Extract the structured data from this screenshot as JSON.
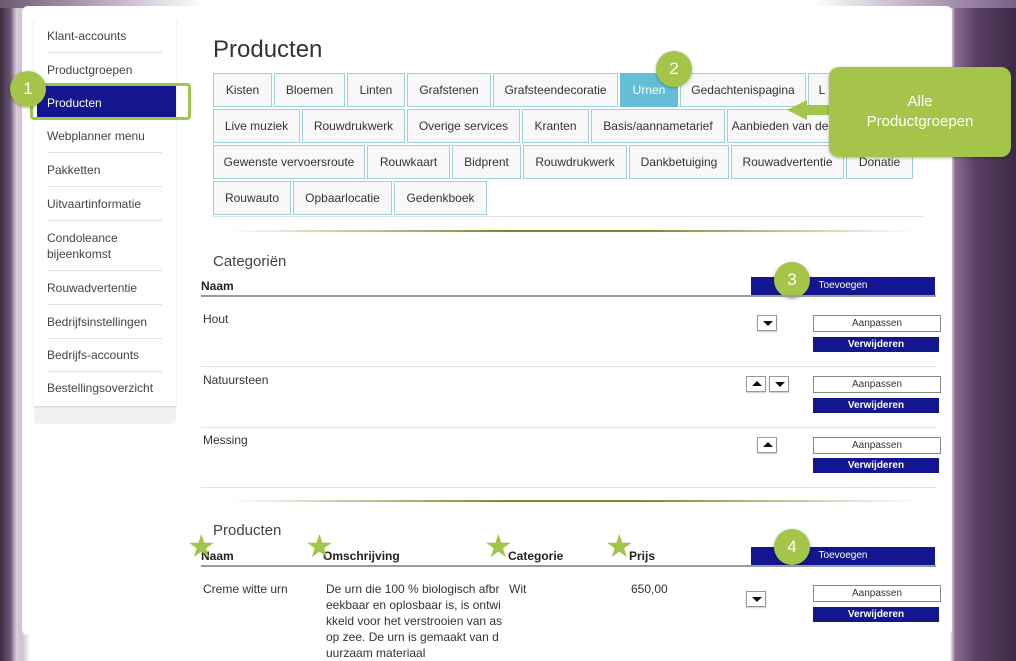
{
  "sidebar": {
    "items": [
      {
        "label": "Klant-accounts"
      },
      {
        "label": "Productgroepen"
      },
      {
        "label": "Producten",
        "active": true
      },
      {
        "label": "Webplanner menu"
      },
      {
        "label": "Pakketten"
      },
      {
        "label": "Uitvaartinformatie"
      },
      {
        "label": "Condoleance bijeenkomst"
      },
      {
        "label": "Rouwadvertentie"
      },
      {
        "label": "Bedrijfsinstellingen"
      },
      {
        "label": "Bedrijfs-accounts"
      },
      {
        "label": "Bestellingsoverzicht"
      }
    ]
  },
  "page_title": "Producten",
  "tabs": [
    {
      "label": "Kisten"
    },
    {
      "label": "Bloemen"
    },
    {
      "label": "Linten"
    },
    {
      "label": "Grafstenen"
    },
    {
      "label": "Grafsteendecoratie"
    },
    {
      "label": "Urnen",
      "active": true
    },
    {
      "label": "Gedachtenispagina"
    },
    {
      "label": "L"
    },
    {
      "label": "Live muziek"
    },
    {
      "label": "Rouwdrukwerk"
    },
    {
      "label": "Overige services"
    },
    {
      "label": "Kranten"
    },
    {
      "label": "Basis/aannametarief"
    },
    {
      "label": "Aanbieden van de"
    },
    {
      "label": "Gewenste vervoersroute"
    },
    {
      "label": "Rouwkaart"
    },
    {
      "label": "Bidprent"
    },
    {
      "label": "Rouwdrukwerk"
    },
    {
      "label": "Dankbetuiging"
    },
    {
      "label": "Rouwadvertentie"
    },
    {
      "label": "Donatie"
    },
    {
      "label": "Rouwauto"
    },
    {
      "label": "Opbaarlocatie"
    },
    {
      "label": "Gedenkboek"
    }
  ],
  "categories": {
    "title": "Categoriën",
    "col_name": "Naam",
    "add_label": "Toevoegen",
    "rows": [
      {
        "name": "Hout",
        "edit": "Aanpassen",
        "delete": "Verwijderen"
      },
      {
        "name": "Natuursteen",
        "edit": "Aanpassen",
        "delete": "Verwijderen"
      },
      {
        "name": "Messing",
        "edit": "Aanpassen",
        "delete": "Verwijderen"
      }
    ]
  },
  "products": {
    "title": "Producten",
    "col_name": "Naam",
    "col_desc": "Omschrijving",
    "col_category": "Categorie",
    "col_price": "Prijs",
    "add_label": "Toevoegen",
    "rows": [
      {
        "name": "Creme witte urn",
        "description": "De urn die 100 % biologisch afbreekbaar en oplosbaar is, is ontwikkeld voor het verstrooien van as op zee. De urn is gemaakt van duurzaam materiaal",
        "category": "Wit",
        "price": "650,00",
        "edit": "Aanpassen",
        "delete": "Verwijderen"
      }
    ]
  },
  "callouts": {
    "c1": "1",
    "c2": "2",
    "c3": "3",
    "c4": "4"
  },
  "bubble": {
    "line1": "Alle",
    "line2": "Productgroepen"
  },
  "colors": {
    "accent_navy": "#14168f",
    "tab_active": "#64bfd6",
    "annotation_green": "#a4c54a"
  }
}
